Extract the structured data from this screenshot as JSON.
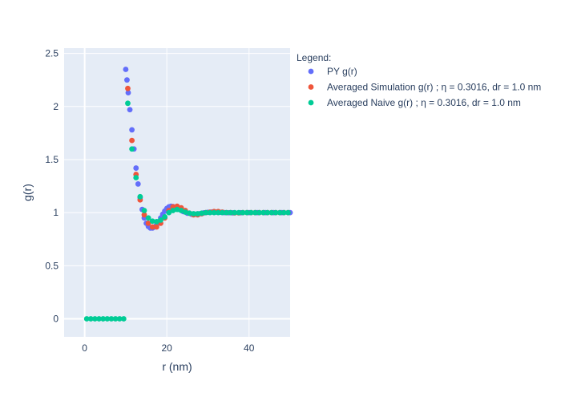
{
  "chart_data": {
    "type": "scatter",
    "xlabel": "r (nm)",
    "ylabel": "g(r)",
    "xlim": [
      -5,
      50
    ],
    "ylim": [
      -0.17,
      2.55
    ],
    "xticks": [
      0,
      20,
      40
    ],
    "yticks": [
      0,
      0.5,
      1,
      1.5,
      2,
      2.5
    ],
    "ytick_labels": [
      "0",
      "0.5",
      "1",
      "1.5",
      "2",
      "2.5"
    ],
    "grid": true,
    "legend": {
      "title": "Legend:",
      "placement": "right"
    },
    "series": [
      {
        "name": "PY g(r)",
        "color": "#636efa",
        "x": [
          10,
          10.3,
          10.6,
          11,
          11.5,
          12,
          12.5,
          13,
          13.5,
          14,
          14.5,
          15,
          15.5,
          16,
          16.5,
          17,
          17.5,
          18,
          18.5,
          19,
          19.5,
          20,
          20.5,
          21,
          21.5,
          22,
          22.5,
          23,
          24,
          25,
          26,
          27,
          28,
          29,
          30,
          31,
          32,
          33,
          34,
          35,
          36,
          38,
          40,
          42,
          44,
          46,
          48,
          50
        ],
        "y": [
          2.35,
          2.25,
          2.13,
          1.97,
          1.78,
          1.6,
          1.42,
          1.27,
          1.14,
          1.03,
          0.95,
          0.9,
          0.87,
          0.855,
          0.855,
          0.865,
          0.885,
          0.915,
          0.95,
          0.985,
          1.015,
          1.04,
          1.055,
          1.06,
          1.058,
          1.05,
          1.04,
          1.03,
          1.01,
          0.995,
          0.985,
          0.985,
          0.99,
          0.998,
          1.003,
          1.006,
          1.005,
          1.003,
          1.0,
          0.999,
          0.998,
          0.999,
          1.0,
          1.0,
          1.0,
          1.0,
          1.0,
          1.0
        ]
      },
      {
        "name": "Averaged Simulation g(r) ; η = 0.3016, dr = 1.0 nm",
        "color": "#ef553b",
        "x": [
          10.5,
          11.5,
          12.5,
          13.5,
          14.5,
          15.5,
          16.5,
          17.5,
          18.5,
          19.5,
          20.5,
          21.5,
          22.5,
          23.5,
          24.5,
          25.5,
          26.5,
          27.5,
          28.5,
          29.5,
          30.5,
          31.5,
          32.5,
          33.5,
          34.5,
          35.5,
          36.5,
          37.5,
          38.5,
          39.5,
          40.5,
          41.5,
          42.5,
          43.5,
          44.5,
          45.5,
          46.5,
          47.5,
          48.5,
          49.5
        ],
        "y": [
          2.17,
          1.68,
          1.36,
          1.12,
          0.98,
          0.9,
          0.865,
          0.865,
          0.9,
          0.95,
          1.02,
          1.055,
          1.06,
          1.045,
          1.02,
          0.995,
          0.98,
          0.98,
          0.99,
          1.0,
          1.005,
          1.01,
          1.01,
          1.005,
          1.0,
          1.0,
          0.998,
          0.998,
          1.0,
          1.0,
          1.0,
          1.0,
          1.0,
          1.0,
          1.0,
          1.0,
          1.0,
          1.0,
          1.0,
          1.0
        ]
      },
      {
        "name": "Averaged Naive g(r) ; η = 0.3016, dr = 1.0 nm",
        "color": "#00cc96",
        "x": [
          0.5,
          1.5,
          2.5,
          3.5,
          4.5,
          5.5,
          6.5,
          7.5,
          8.5,
          9.5,
          10.5,
          11.5,
          12.5,
          13.5,
          14.5,
          15.5,
          16.5,
          17.5,
          18.5,
          19.5,
          20.5,
          21.5,
          22.5,
          23.5,
          24.5,
          25.5,
          26.5,
          27.5,
          28.5,
          29.5,
          30.5,
          31.5,
          32.5,
          33.5,
          34.5,
          35.5,
          36.5,
          37.5,
          38.5,
          39.5,
          40.5,
          41.5,
          42.5,
          43.5,
          44.5,
          45.5,
          46.5,
          47.5,
          48.5,
          49.5
        ],
        "y": [
          0,
          0,
          0,
          0,
          0,
          0,
          0,
          0,
          0,
          0,
          2.03,
          1.6,
          1.33,
          1.15,
          1.02,
          0.95,
          0.92,
          0.915,
          0.93,
          0.96,
          1.0,
          1.02,
          1.03,
          1.02,
          1.005,
          0.995,
          0.99,
          0.99,
          0.995,
          1.0,
          1.0,
          1.0,
          1.0,
          1.0,
          1.0,
          1.0,
          1.0,
          1.0,
          1.0,
          1.0,
          1.0,
          1.0,
          1.0,
          1.0,
          1.0,
          1.0,
          1.0,
          1.0,
          1.0,
          1.0
        ]
      }
    ]
  }
}
